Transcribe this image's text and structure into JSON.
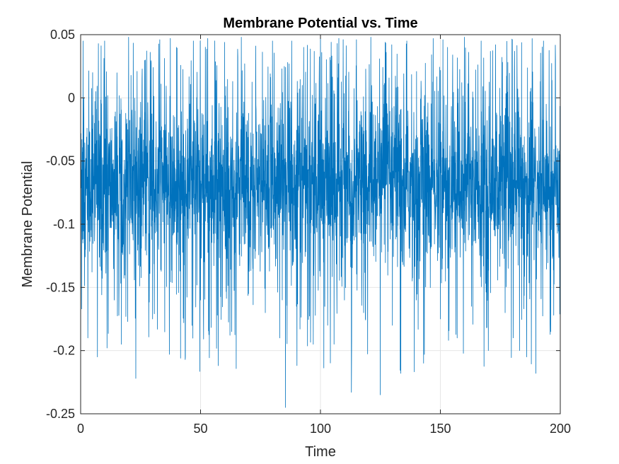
{
  "chart_data": {
    "type": "line",
    "title": "Membrane Potential vs. Time",
    "xlabel": "Time",
    "ylabel": "Membrane Potential",
    "xlim": [
      0,
      200
    ],
    "ylim": [
      -0.25,
      0.05
    ],
    "xticks": [
      0,
      50,
      100,
      150,
      200
    ],
    "yticks": [
      -0.25,
      -0.2,
      -0.15,
      -0.1,
      -0.05,
      0,
      0.05
    ],
    "xtick_labels": [
      "0",
      "50",
      "100",
      "150",
      "200"
    ],
    "ytick_labels": [
      "-0.25",
      "-0.2",
      "-0.15",
      "-0.1",
      "-0.05",
      "0",
      "0.05"
    ],
    "grid": true,
    "legend": "none",
    "colors": {
      "series": "#0072BD",
      "axis": "#262626",
      "grid": "#e6e6e6"
    },
    "series": [
      {
        "sampling": "dense noisy trace, approximately 3000 samples across the time range",
        "baseline": -0.07,
        "typical_band": [
          -0.1,
          -0.04
        ],
        "max": 0.048,
        "min": -0.245,
        "x": [
          0,
          1,
          2,
          3,
          5,
          7,
          10,
          14,
          17,
          20,
          23,
          27,
          30,
          33,
          37,
          40,
          43,
          47,
          50,
          53,
          57,
          60,
          63,
          67,
          70,
          73,
          77,
          80,
          83,
          85.4,
          88,
          90,
          93,
          97,
          100,
          103,
          107,
          110,
          112.9,
          115,
          118,
          121,
          124.9,
          127,
          130,
          133.5,
          136,
          140,
          143,
          147,
          150,
          153,
          157,
          160,
          163,
          167,
          170,
          173,
          177,
          180,
          183,
          186,
          189.8,
          193,
          196,
          198,
          200
        ],
        "y": [
          -0.068,
          0.045,
          -0.12,
          -0.19,
          0.02,
          -0.205,
          0.045,
          -0.16,
          -0.195,
          0.048,
          -0.222,
          0.03,
          -0.175,
          0.046,
          -0.203,
          0.04,
          -0.178,
          0.045,
          -0.16,
          0.047,
          -0.172,
          0.044,
          -0.185,
          0.048,
          -0.155,
          0.041,
          -0.17,
          0.045,
          -0.19,
          -0.245,
          0.045,
          -0.165,
          0.04,
          -0.195,
          0.047,
          -0.18,
          0.043,
          -0.16,
          -0.233,
          0.046,
          -0.17,
          0.048,
          -0.235,
          0.044,
          -0.18,
          -0.218,
          0.045,
          -0.16,
          -0.21,
          0.047,
          -0.175,
          0.04,
          -0.19,
          0.048,
          -0.165,
          0.045,
          -0.2,
          0.042,
          -0.17,
          0.046,
          -0.2,
          -0.205,
          -0.218,
          0.045,
          -0.185,
          0.03,
          -0.213
        ]
      }
    ]
  }
}
